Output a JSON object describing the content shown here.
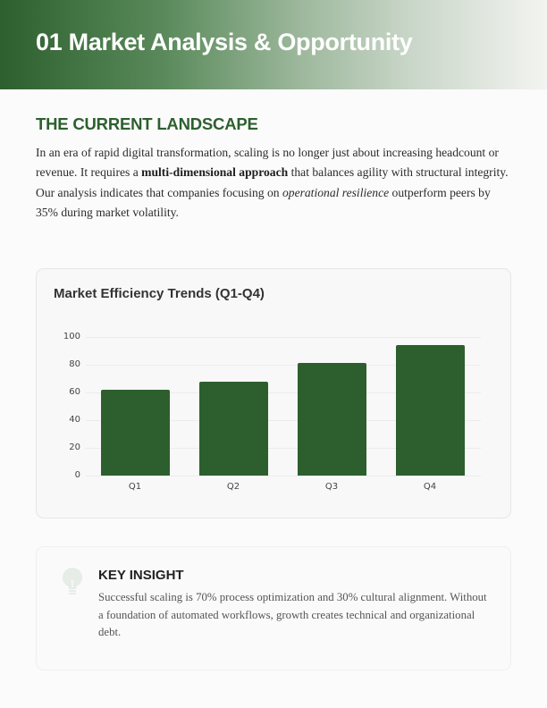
{
  "header": {
    "title": "01 Market Analysis & Opportunity"
  },
  "landscape": {
    "title": "THE CURRENT LANDSCAPE",
    "paragraph": {
      "part1": "In an era of rapid digital transformation, scaling is no longer just about increasing headcount or revenue. It requires a ",
      "bold": "multi-dimensional approach",
      "part2": " that balances agility with structural integrity. Our analysis indicates that companies focusing on ",
      "italic": "operational resilience",
      "part3": " outperform peers by 35% during market volatility."
    }
  },
  "chart_data": {
    "type": "bar",
    "title": "Market Efficiency Trends (Q1-Q4)",
    "categories": [
      "Q1",
      "Q2",
      "Q3",
      "Q4"
    ],
    "values": [
      62,
      68,
      81,
      94
    ],
    "xlabel": "",
    "ylabel": "",
    "ylim": [
      0,
      100
    ],
    "yticks": [
      0,
      20,
      40,
      60,
      80,
      100
    ],
    "grid": true,
    "legend": false,
    "bar_color": "#2d5f2e"
  },
  "insight": {
    "icon": "lightbulb-icon",
    "title": "KEY INSIGHT",
    "text": "Successful scaling is 70% process optimization and 30% cultural alignment. Without a foundation of automated workflows, growth creates technical and organizational debt."
  },
  "colors": {
    "accent": "#2d5f2e",
    "background": "#fbfbfb"
  }
}
